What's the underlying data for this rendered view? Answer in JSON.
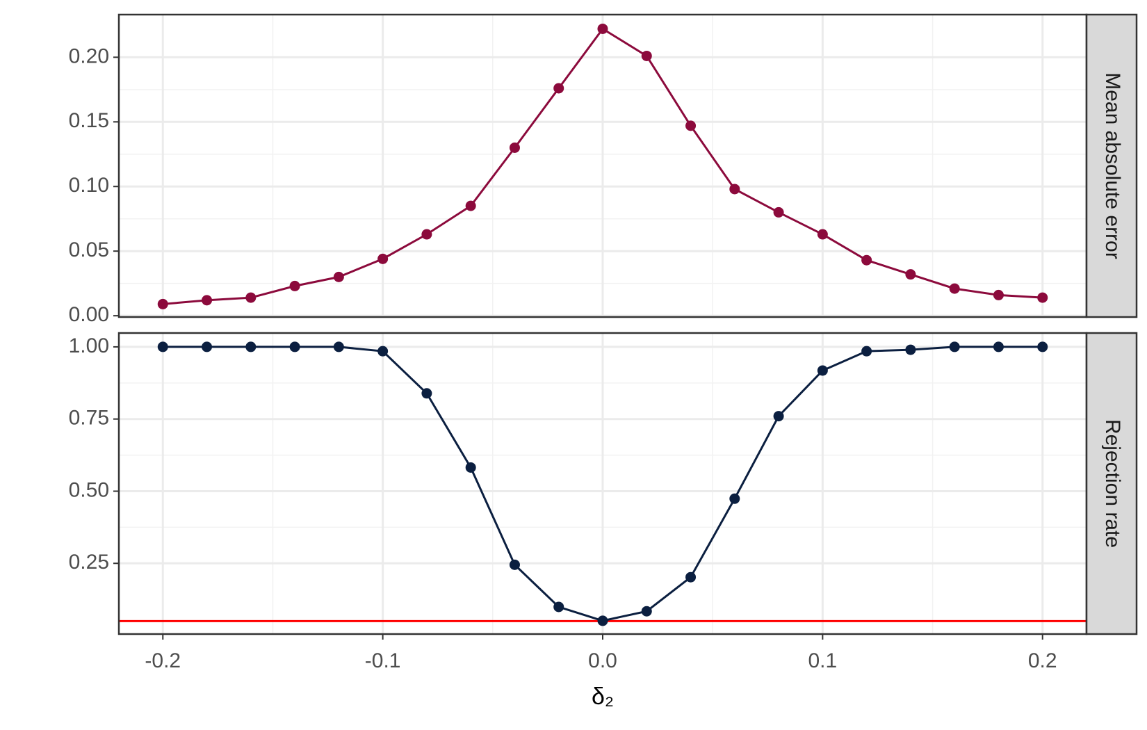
{
  "chart_data": [
    {
      "type": "line",
      "strip": "Mean absolute error",
      "x": [
        -0.2,
        -0.18,
        -0.16,
        -0.14,
        -0.12,
        -0.1,
        -0.08,
        -0.06,
        -0.04,
        -0.02,
        0,
        0.02,
        0.04,
        0.06,
        0.08,
        0.1,
        0.12,
        0.14,
        0.16,
        0.18,
        0.2
      ],
      "series": [
        {
          "color": "#8c0a3c",
          "values": [
            0.009,
            0.012,
            0.014,
            0.023,
            0.03,
            0.044,
            0.063,
            0.085,
            0.13,
            0.176,
            0.222,
            0.201,
            0.147,
            0.098,
            0.08,
            0.063,
            0.043,
            0.032,
            0.021,
            0.016,
            0.014
          ]
        }
      ],
      "xlim": [
        -0.22,
        0.22
      ],
      "xticks": [
        -0.2,
        -0.1,
        {
          "value": 0,
          "label": "0.0"
        },
        0.1,
        0.2
      ],
      "ylim": [
        -0.001,
        0.233
      ],
      "yticks": [
        {
          "value": 0,
          "label": "0.00"
        },
        0.05,
        {
          "value": 0.1,
          "label": "0.10"
        },
        0.15,
        {
          "value": 0.2,
          "label": "0.20"
        }
      ],
      "grid": true
    },
    {
      "type": "line",
      "strip": "Rejection rate",
      "x_label": "δ₂",
      "x": [
        -0.2,
        -0.18,
        -0.16,
        -0.14,
        -0.12,
        -0.1,
        -0.08,
        -0.06,
        -0.04,
        -0.02,
        0,
        0.02,
        0.04,
        0.06,
        0.08,
        0.1,
        0.12,
        0.14,
        0.16,
        0.18,
        0.2
      ],
      "series": [
        {
          "color": "#0b1f40",
          "values": [
            1.0,
            1.0,
            1.0,
            1.0,
            1.0,
            0.985,
            0.839,
            0.582,
            0.245,
            0.099,
            0.051,
            0.084,
            0.202,
            0.474,
            0.76,
            0.918,
            0.985,
            0.99,
            1.0,
            1.0,
            1.0
          ]
        }
      ],
      "hline": {
        "value": 0.05,
        "color": "#ff0000"
      },
      "xlim": [
        -0.22,
        0.22
      ],
      "xticks": [
        -0.2,
        -0.1,
        {
          "value": 0,
          "label": "0.0"
        },
        0.1,
        0.2
      ],
      "ylim": [
        0.005,
        1.048
      ],
      "yticks": [
        0.25,
        {
          "value": 0.5,
          "label": "0.50"
        },
        0.75,
        {
          "value": 1,
          "label": "1.00"
        }
      ],
      "grid": true
    }
  ]
}
